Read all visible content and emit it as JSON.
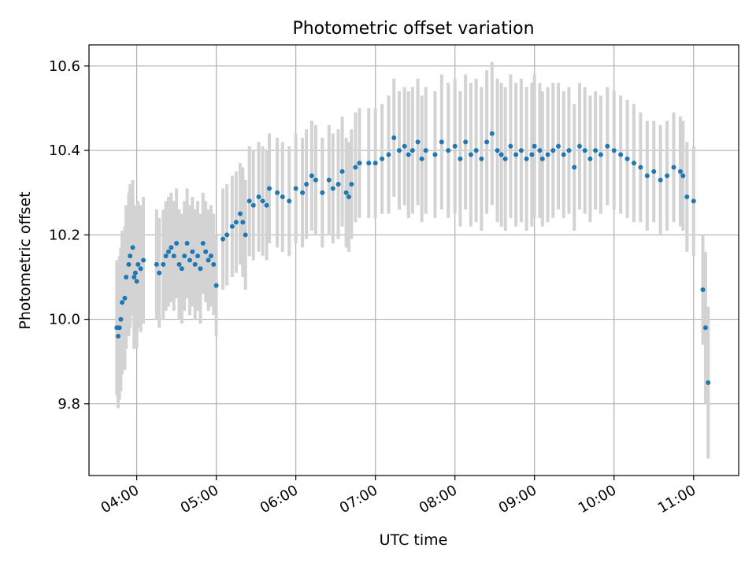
{
  "chart_data": {
    "type": "scatter",
    "title": "Photometric offset variation",
    "xlabel": "UTC time",
    "ylabel": "Photometric offset",
    "x_ticks": [
      "04:00",
      "05:00",
      "06:00",
      "07:00",
      "08:00",
      "09:00",
      "10:00",
      "11:00"
    ],
    "y_ticks": [
      "9.8",
      "10.0",
      "10.2",
      "10.4",
      "10.6"
    ],
    "xlim": [
      "03:24",
      "11:34"
    ],
    "ylim": [
      9.63,
      10.65
    ],
    "grid": true,
    "colors": {
      "points": "#1f77b4",
      "errorbars": "#d3d3d3",
      "grid": "#b0b0b0"
    },
    "series": [
      {
        "x": [
          "03:45",
          "03:46",
          "03:47",
          "03:48",
          "03:49",
          "03:51",
          "03:52",
          "03:54",
          "03:55",
          "03:57",
          "03:58",
          "03:59",
          "04:00",
          "04:01",
          "04:03",
          "04:05",
          "04:15",
          "04:17",
          "04:20",
          "04:22",
          "04:24",
          "04:26",
          "04:28",
          "04:30",
          "04:32",
          "04:34",
          "04:36",
          "04:38",
          "04:40",
          "04:42",
          "04:44",
          "04:46",
          "04:48",
          "04:50",
          "04:52",
          "04:54",
          "04:56",
          "04:58",
          "05:00",
          "05:05",
          "05:08",
          "05:12",
          "05:15",
          "05:18",
          "05:20",
          "05:22",
          "05:25",
          "05:28",
          "05:32",
          "05:35",
          "05:38",
          "05:40",
          "05:46",
          "05:50",
          "05:55",
          "06:00",
          "06:05",
          "06:08",
          "06:12",
          "06:15",
          "06:20",
          "06:25",
          "06:28",
          "06:32",
          "06:35",
          "06:38",
          "06:40",
          "06:42",
          "06:45",
          "06:48",
          "06:55",
          "07:00",
          "07:05",
          "07:10",
          "07:14",
          "07:18",
          "07:22",
          "07:25",
          "07:28",
          "07:32",
          "07:35",
          "07:38",
          "07:45",
          "07:50",
          "07:55",
          "08:00",
          "08:04",
          "08:08",
          "08:12",
          "08:16",
          "08:20",
          "08:24",
          "08:28",
          "08:32",
          "08:35",
          "08:38",
          "08:42",
          "08:46",
          "08:50",
          "08:54",
          "08:58",
          "09:00",
          "09:04",
          "09:06",
          "09:10",
          "09:14",
          "09:18",
          "09:22",
          "09:26",
          "09:30",
          "09:34",
          "09:38",
          "09:42",
          "09:46",
          "09:50",
          "09:55",
          "10:00",
          "10:05",
          "10:10",
          "10:15",
          "10:20",
          "10:25",
          "10:30",
          "10:35",
          "10:40",
          "10:45",
          "10:50",
          "10:52",
          "10:55",
          "11:00",
          "11:07",
          "11:09",
          "11:11"
        ],
        "y": [
          9.98,
          9.96,
          9.98,
          10.0,
          10.04,
          10.05,
          10.1,
          10.13,
          10.15,
          10.17,
          10.1,
          10.11,
          10.09,
          10.13,
          10.12,
          10.14,
          10.13,
          10.11,
          10.13,
          10.15,
          10.16,
          10.17,
          10.15,
          10.18,
          10.13,
          10.12,
          10.15,
          10.18,
          10.14,
          10.16,
          10.13,
          10.15,
          10.12,
          10.18,
          10.16,
          10.14,
          10.15,
          10.13,
          10.08,
          10.19,
          10.2,
          10.22,
          10.23,
          10.25,
          10.23,
          10.2,
          10.28,
          10.27,
          10.29,
          10.28,
          10.27,
          10.31,
          10.3,
          10.29,
          10.28,
          10.31,
          10.3,
          10.32,
          10.34,
          10.33,
          10.3,
          10.33,
          10.31,
          10.32,
          10.35,
          10.3,
          10.29,
          10.32,
          10.36,
          10.37,
          10.37,
          10.37,
          10.38,
          10.39,
          10.43,
          10.4,
          10.41,
          10.39,
          10.4,
          10.42,
          10.38,
          10.4,
          10.39,
          10.42,
          10.4,
          10.41,
          10.38,
          10.42,
          10.39,
          10.4,
          10.38,
          10.42,
          10.44,
          10.4,
          10.39,
          10.38,
          10.41,
          10.39,
          10.4,
          10.38,
          10.39,
          10.41,
          10.4,
          10.38,
          10.39,
          10.4,
          10.41,
          10.39,
          10.4,
          10.36,
          10.41,
          10.4,
          10.38,
          10.4,
          10.39,
          10.41,
          10.4,
          10.39,
          10.38,
          10.37,
          10.36,
          10.34,
          10.35,
          10.33,
          10.34,
          10.36,
          10.35,
          10.34,
          10.29,
          10.28,
          10.07,
          9.98,
          9.85
        ],
        "yerr": [
          0.16,
          0.17,
          0.17,
          0.17,
          0.17,
          0.17,
          0.17,
          0.17,
          0.17,
          0.16,
          0.17,
          0.16,
          0.16,
          0.15,
          0.15,
          0.15,
          0.13,
          0.13,
          0.13,
          0.13,
          0.13,
          0.13,
          0.13,
          0.13,
          0.13,
          0.13,
          0.13,
          0.13,
          0.13,
          0.13,
          0.13,
          0.13,
          0.13,
          0.12,
          0.12,
          0.12,
          0.12,
          0.12,
          0.12,
          0.12,
          0.12,
          0.12,
          0.12,
          0.12,
          0.13,
          0.13,
          0.13,
          0.13,
          0.13,
          0.13,
          0.13,
          0.13,
          0.13,
          0.13,
          0.13,
          0.13,
          0.13,
          0.13,
          0.13,
          0.13,
          0.13,
          0.13,
          0.13,
          0.13,
          0.13,
          0.13,
          0.13,
          0.13,
          0.13,
          0.13,
          0.13,
          0.13,
          0.13,
          0.14,
          0.14,
          0.14,
          0.14,
          0.15,
          0.15,
          0.15,
          0.15,
          0.15,
          0.15,
          0.16,
          0.16,
          0.16,
          0.16,
          0.16,
          0.17,
          0.17,
          0.17,
          0.17,
          0.17,
          0.17,
          0.17,
          0.17,
          0.17,
          0.17,
          0.17,
          0.17,
          0.17,
          0.17,
          0.16,
          0.16,
          0.16,
          0.16,
          0.15,
          0.15,
          0.15,
          0.15,
          0.15,
          0.15,
          0.15,
          0.14,
          0.14,
          0.14,
          0.14,
          0.14,
          0.14,
          0.14,
          0.13,
          0.13,
          0.12,
          0.13,
          0.13,
          0.13,
          0.13,
          0.13,
          0.13,
          0.13,
          0.13,
          0.18,
          0.18
        ]
      }
    ]
  }
}
